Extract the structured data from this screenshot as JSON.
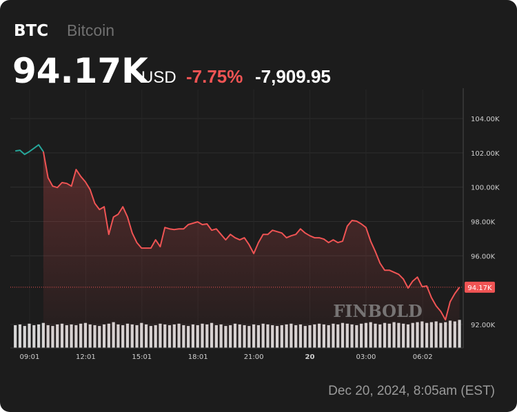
{
  "chart_data": {
    "type": "line",
    "symbol": "BTC",
    "name": "Bitcoin",
    "price": "94.17K",
    "currency": "USD",
    "change_percent": "-7.75%",
    "change": "-7,909.95",
    "timestamp": "Dec 20, 2024, 8:05am (EST)",
    "watermark": "FINBOLD",
    "x": [
      8.25,
      8.5,
      8.75,
      9,
      9.25,
      9.5,
      9.75,
      10,
      10.25,
      10.5,
      10.75,
      11,
      11.25,
      11.5,
      11.75,
      12,
      12.25,
      12.5,
      12.75,
      13,
      13.25,
      13.5,
      13.75,
      14,
      14.25,
      14.5,
      14.75,
      15,
      15.25,
      15.5,
      15.75,
      16,
      16.25,
      16.5,
      16.75,
      17,
      17.25,
      17.5,
      17.75,
      18,
      18.25,
      18.5,
      18.75,
      19,
      19.25,
      19.5,
      19.75,
      20,
      20.25,
      20.5,
      20.75,
      21,
      21.25,
      21.5,
      21.75,
      22,
      22.25,
      22.5,
      22.75,
      23,
      23.25,
      23.5,
      23.75,
      24,
      24.25,
      24.5,
      24.75,
      25,
      25.25,
      25.5,
      25.75,
      26,
      26.25,
      26.5,
      26.75,
      27,
      27.25,
      27.5,
      27.75,
      28,
      28.25,
      28.5,
      28.75,
      29,
      29.25,
      29.5,
      29.75,
      30,
      30.25,
      30.5,
      30.75,
      31,
      31.25,
      31.5,
      31.75,
      32
    ],
    "series": [
      {
        "color": "#26a69a",
        "values": [
          102.11,
          102.15,
          101.91,
          102.07,
          102.27,
          102.47,
          102.07,
          null,
          null,
          null,
          null,
          null,
          null,
          null,
          null,
          null,
          null,
          null,
          null,
          null,
          null,
          null,
          null,
          null,
          null,
          null,
          null,
          null,
          null,
          null,
          null,
          null,
          null,
          null,
          null,
          null,
          null,
          null,
          null,
          null,
          null,
          null,
          null,
          null,
          null,
          null,
          null,
          null,
          null,
          null,
          null,
          null,
          null,
          null,
          null,
          null,
          null,
          null,
          null,
          null,
          null,
          null,
          null,
          null,
          null,
          null,
          null,
          null,
          null,
          null,
          null,
          null,
          null,
          null,
          null,
          null,
          null,
          null,
          null,
          null,
          null,
          null,
          null,
          null,
          null,
          null,
          null,
          null,
          null,
          null,
          null,
          null,
          null,
          null,
          null,
          null
        ]
      },
      {
        "color": "#f05454",
        "values": [
          null,
          null,
          null,
          null,
          null,
          null,
          102.07,
          100.55,
          100.06,
          99.98,
          100.27,
          100.22,
          100.06,
          101.03,
          100.63,
          100.31,
          99.86,
          99.06,
          98.7,
          98.86,
          97.25,
          98.26,
          98.42,
          98.86,
          98.26,
          97.33,
          96.77,
          96.45,
          96.45,
          96.45,
          96.93,
          96.53,
          97.65,
          97.57,
          97.53,
          97.57,
          97.57,
          97.82,
          97.9,
          97.98,
          97.82,
          97.86,
          97.49,
          97.57,
          97.25,
          96.93,
          97.25,
          97.05,
          96.93,
          97.05,
          96.65,
          96.13,
          96.77,
          97.25,
          97.25,
          97.49,
          97.41,
          97.33,
          97.05,
          97.17,
          97.25,
          97.57,
          97.33,
          97.17,
          97.05,
          97.05,
          96.97,
          96.77,
          96.93,
          96.77,
          96.85,
          97.73,
          98.06,
          98.02,
          97.86,
          97.65,
          96.85,
          96.25,
          95.57,
          95.16,
          95.16,
          95.04,
          94.92,
          94.64,
          94.12,
          94.52,
          94.76,
          94.2,
          94.24,
          93.56,
          93.08,
          92.76,
          92.27,
          93.32,
          93.8,
          94.17
        ]
      }
    ],
    "volume": [
      30,
      31,
      29,
      32,
      30,
      31,
      33,
      30,
      29,
      31,
      32,
      30,
      31,
      30,
      32,
      33,
      31,
      30,
      29,
      31,
      32,
      34,
      31,
      30,
      32,
      31,
      30,
      33,
      31,
      29,
      30,
      32,
      31,
      30,
      31,
      32,
      30,
      29,
      31,
      30,
      32,
      31,
      33,
      30,
      31,
      29,
      30,
      32,
      31,
      30,
      29,
      31,
      30,
      32,
      31,
      30,
      29,
      30,
      31,
      32,
      30,
      31,
      29,
      30,
      31,
      32,
      31,
      30,
      32,
      31,
      33,
      32,
      31,
      30,
      32,
      33,
      34,
      32,
      31,
      33,
      32,
      34,
      33,
      32,
      31,
      33,
      34,
      35,
      33,
      34,
      35,
      33,
      34,
      36,
      35,
      37
    ],
    "volume_lim": [
      0,
      40
    ],
    "volume_color": "#d6d6d6",
    "xlim": [
      8.17,
      32.2
    ],
    "xticks": [
      {
        "value": 9.0167,
        "label": "09:01"
      },
      {
        "value": 12.0167,
        "label": "12:01"
      },
      {
        "value": 15.0167,
        "label": "15:01"
      },
      {
        "value": 18.0167,
        "label": "18:01"
      },
      {
        "value": 21,
        "label": "21:00"
      },
      {
        "value": 24,
        "label": "20"
      },
      {
        "value": 27,
        "label": "03:00"
      },
      {
        "value": 30.033,
        "label": "06:02"
      }
    ],
    "ylim": [
      90.63,
      105.69
    ],
    "yticks": [
      {
        "value": 92,
        "label": "92.00K"
      },
      {
        "value": 96,
        "label": "96.00K"
      },
      {
        "value": 98,
        "label": "98.00K"
      },
      {
        "value": 100,
        "label": "100.00K"
      },
      {
        "value": 102,
        "label": "102.00K"
      },
      {
        "value": 104,
        "label": "104.00K"
      }
    ],
    "last": {
      "value": 94.17,
      "label": "94.17K"
    },
    "grid": true
  }
}
